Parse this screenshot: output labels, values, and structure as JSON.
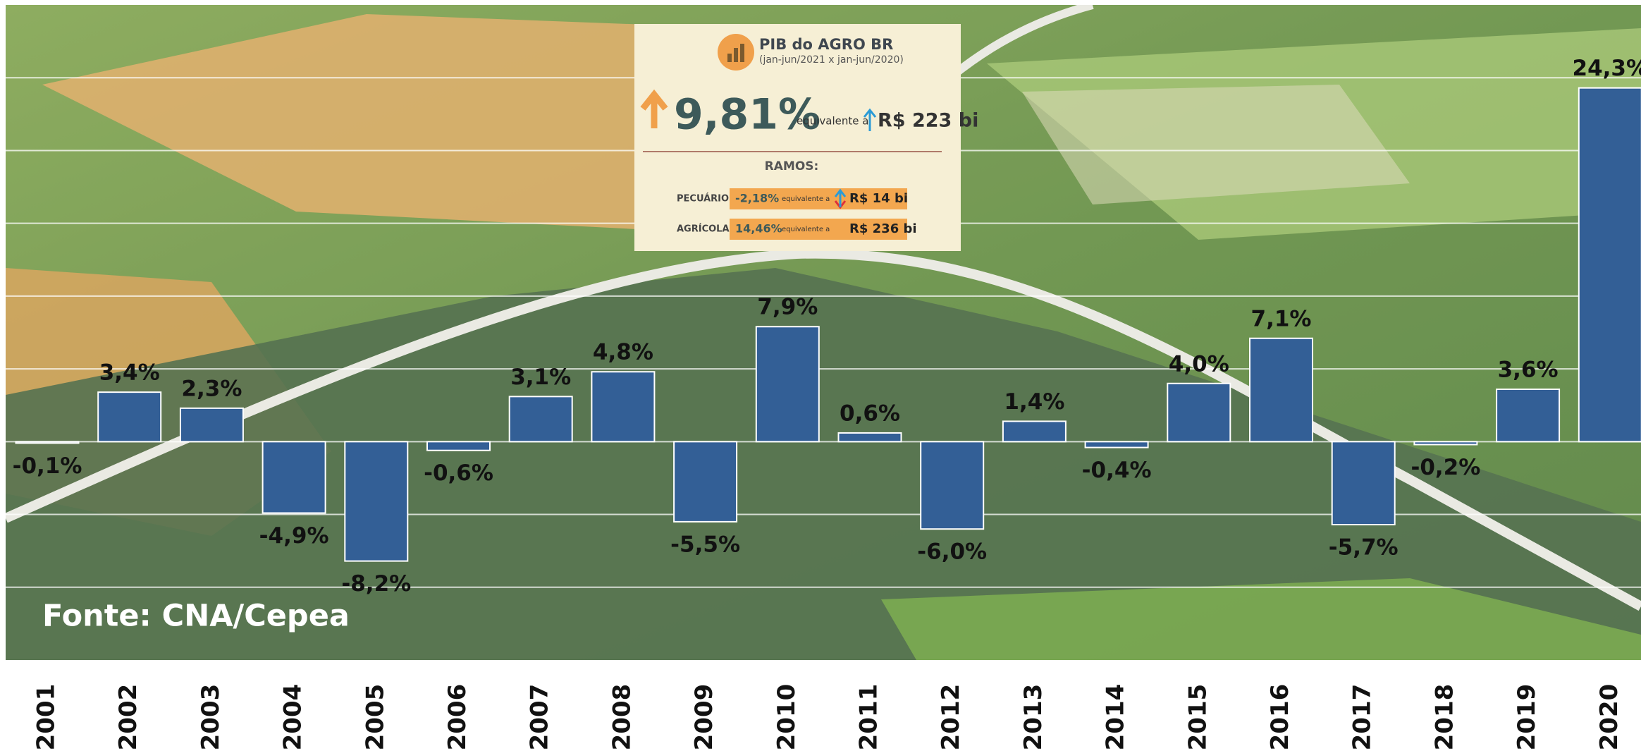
{
  "chart_data": {
    "type": "bar",
    "categories": [
      "2001",
      "2002",
      "2003",
      "2004",
      "2005",
      "2006",
      "2007",
      "2008",
      "2009",
      "2010",
      "2011",
      "2012",
      "2013",
      "2014",
      "2015",
      "2016",
      "2017",
      "2018",
      "2019",
      "2020"
    ],
    "values": [
      -0.1,
      3.4,
      2.3,
      -4.9,
      -8.2,
      -0.6,
      3.1,
      4.8,
      -5.5,
      7.9,
      0.6,
      -6.0,
      1.4,
      -0.4,
      4.0,
      7.1,
      -5.7,
      -0.2,
      3.6,
      24.3
    ],
    "value_labels": [
      "-0,1%",
      "3,4%",
      "2,3%",
      "-4,9%",
      "-8,2%",
      "-0,6%",
      "3,1%",
      "4,8%",
      "-5,5%",
      "7,9%",
      "0,6%",
      "-6,0%",
      "1,4%",
      "-0,4%",
      "4,0%",
      "7,1%",
      "-5,7%",
      "-0,2%",
      "3,6%",
      "24,3%"
    ],
    "color": "#335f96",
    "ylim": [
      -15,
      30
    ],
    "yticks": [
      -10,
      -5,
      0,
      5,
      10,
      15,
      20,
      25
    ],
    "grid": true,
    "source": "Fonte: CNA/Cepea",
    "inset": {
      "title": "PIB do AGRO BR",
      "subtitle": "(jan-jun/2021 x jan-jun/2020)",
      "total": "9,81%",
      "equiv": "equivalente a",
      "total_value": "R$ 223 bi",
      "ramos": "RAMOS:",
      "rows": [
        {
          "name": "PECUÁRIO",
          "change": "-2,18%",
          "equiv": "equivalente a",
          "amount": "R$ 14 bi"
        },
        {
          "name": "AGRÍCOLA",
          "change": "14,46%",
          "equiv": "equivalente a",
          "amount": "R$ 236 bi"
        }
      ]
    }
  }
}
